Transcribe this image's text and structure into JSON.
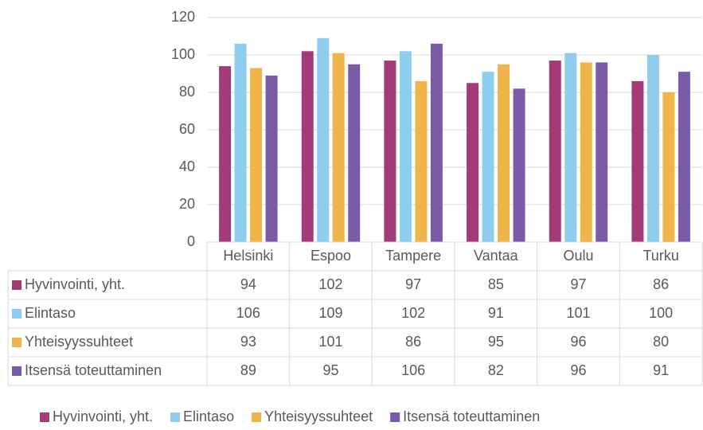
{
  "chart_data": {
    "type": "bar",
    "categories": [
      "Helsinki",
      "Espoo",
      "Tampere",
      "Vantaa",
      "Oulu",
      "Turku"
    ],
    "series": [
      {
        "name": "Hyvinvointi, yht.",
        "color": "#a23b76",
        "values": [
          94,
          102,
          97,
          85,
          97,
          86
        ]
      },
      {
        "name": "Elintaso",
        "color": "#8fcdee",
        "values": [
          106,
          109,
          102,
          91,
          101,
          100
        ]
      },
      {
        "name": "Yhteisyyssuhteet",
        "color": "#efb54a",
        "values": [
          93,
          101,
          86,
          95,
          96,
          80
        ]
      },
      {
        "name": "Itsensä toteuttaminen",
        "color": "#7a5ba7",
        "values": [
          89,
          95,
          106,
          82,
          96,
          91
        ]
      }
    ],
    "ylim": [
      0,
      120
    ],
    "yticks": [
      0,
      20,
      40,
      60,
      80,
      100,
      120
    ],
    "grid": true,
    "legend": "bottom",
    "data_table": true
  }
}
